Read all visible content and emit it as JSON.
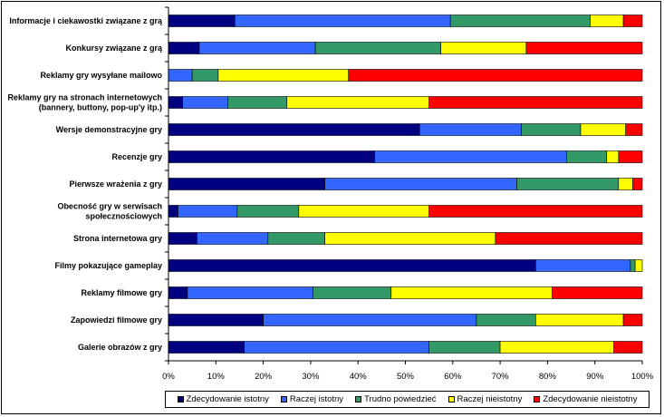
{
  "chart_data": {
    "type": "bar",
    "orientation": "horizontal",
    "stacked": "percent",
    "categories": [
      [
        "Informacje i ciekawostki związane z grą"
      ],
      [
        "Konkursy związane z grą"
      ],
      [
        "Reklamy gry wysyłane mailowo"
      ],
      [
        "Reklamy gry na stronach internetowych",
        "(bannery, buttony, pop-up'y itp.)"
      ],
      [
        "Wersje demonstracyjne gry"
      ],
      [
        "Recenzje gry"
      ],
      [
        "Pierwsze wrażenia z gry"
      ],
      [
        "Obecność gry w serwisach",
        "społecznościowych"
      ],
      [
        "Strona internetowa gry"
      ],
      [
        "Filmy pokazujące gameplay"
      ],
      [
        "Reklamy filmowe gry"
      ],
      [
        "Zapowiedzi filmowe gry"
      ],
      [
        "Galerie obrazów z gry"
      ]
    ],
    "series": [
      {
        "name": "Zdecydowanie istotny",
        "color": "#000080",
        "values": [
          14,
          6.5,
          0,
          3,
          53,
          43.5,
          33,
          2,
          6,
          77.5,
          4,
          20,
          16
        ]
      },
      {
        "name": "Raczej istotny",
        "color": "#3366FF",
        "values": [
          45.5,
          24.5,
          5,
          9.5,
          21.5,
          40.5,
          40.5,
          12.5,
          15,
          20,
          26.5,
          45,
          39
        ]
      },
      {
        "name": "Trudno powiedzieć",
        "color": "#339966",
        "values": [
          29.5,
          26.5,
          5.5,
          12.5,
          12.5,
          8.5,
          21.5,
          13,
          12,
          1,
          16.5,
          12.5,
          15
        ]
      },
      {
        "name": "Raczej nieistotny",
        "color": "#FFFF00",
        "values": [
          7,
          18,
          27.5,
          30,
          9.5,
          2.5,
          3,
          27.5,
          36,
          1.5,
          34,
          18.5,
          24
        ]
      },
      {
        "name": "Zdecydowanie nieistotny",
        "color": "#FF0000",
        "values": [
          4,
          24.5,
          62,
          45,
          3.5,
          5,
          2,
          45,
          31,
          0,
          19,
          4,
          6
        ]
      }
    ],
    "x_ticks": [
      "0%",
      "10%",
      "20%",
      "30%",
      "40%",
      "50%",
      "60%",
      "70%",
      "80%",
      "90%",
      "100%"
    ],
    "xlim": [
      0,
      100
    ],
    "grid": false,
    "legend_position": "bottom"
  }
}
